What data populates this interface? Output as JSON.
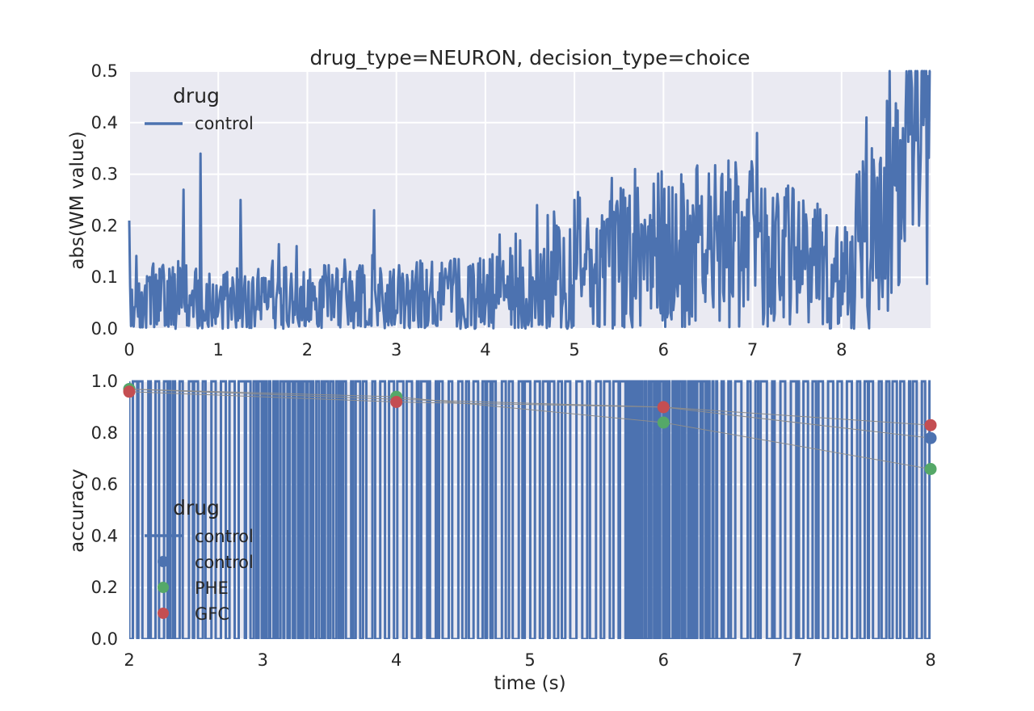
{
  "chart_data": [
    {
      "type": "line",
      "title": "drug_type=NEURON, decision_type=choice",
      "xlabel": "",
      "ylabel": "abs(WM value)",
      "xlim": [
        0,
        9
      ],
      "ylim": [
        0,
        0.5
      ],
      "xticks": [
        "0",
        "1",
        "2",
        "3",
        "4",
        "5",
        "6",
        "7",
        "8"
      ],
      "yticks": [
        "0.0",
        "0.1",
        "0.2",
        "0.3",
        "0.4",
        "0.5"
      ],
      "grid": true,
      "legend": {
        "title": "drug",
        "placement": "top-left",
        "entries": [
          "control"
        ]
      },
      "series": [
        {
          "name": "control",
          "color": "#4c72b0",
          "noise": "high-frequency, approx. 0.0–0.35",
          "trend": {
            "x": [
              0,
              1,
              2,
              3,
              4,
              4.5,
              5,
              6,
              7,
              7.5,
              8,
              8.2,
              8.5,
              8.8,
              9
            ],
            "y": [
              0.06,
              0.05,
              0.05,
              0.05,
              0.06,
              0.09,
              0.13,
              0.15,
              0.16,
              0.13,
              0.11,
              0.15,
              0.25,
              0.31,
              0.36
            ]
          },
          "peaks": [
            {
              "x": 0.0,
              "y": 0.21
            },
            {
              "x": 0.61,
              "y": 0.27
            },
            {
              "x": 0.8,
              "y": 0.34
            },
            {
              "x": 1.25,
              "y": 0.25
            },
            {
              "x": 2.75,
              "y": 0.23
            },
            {
              "x": 4.58,
              "y": 0.24
            },
            {
              "x": 5.0,
              "y": 0.25
            },
            {
              "x": 5.55,
              "y": 0.27
            },
            {
              "x": 5.68,
              "y": 0.31
            },
            {
              "x": 6.37,
              "y": 0.31
            },
            {
              "x": 6.75,
              "y": 0.29
            },
            {
              "x": 7.05,
              "y": 0.38
            },
            {
              "x": 8.28,
              "y": 0.41
            },
            {
              "x": 8.58,
              "y": 0.39
            },
            {
              "x": 8.72,
              "y": 0.42
            },
            {
              "x": 8.97,
              "y": 0.49
            }
          ]
        }
      ]
    },
    {
      "type": "line",
      "title": "",
      "xlabel": "time (s)",
      "ylabel": "accuracy",
      "xlim": [
        2,
        8
      ],
      "ylim": [
        0,
        1
      ],
      "xticks": [
        "2",
        "3",
        "4",
        "5",
        "6",
        "7",
        "8"
      ],
      "yticks": [
        "0.0",
        "0.2",
        "0.4",
        "0.6",
        "0.8",
        "1.0"
      ],
      "grid": true,
      "legend": {
        "title": "drug",
        "placement": "center-left",
        "entries": [
          "control",
          "control",
          "PHE",
          "GFC"
        ]
      },
      "series": [
        {
          "name": "control",
          "kind": "binary-trace",
          "values": "0 or 1",
          "color": "#4c72b0"
        },
        {
          "name": "control",
          "kind": "points",
          "color": "#4c72b0",
          "x": [
            2,
            4,
            6,
            8
          ],
          "y": [
            0.97,
            0.93,
            0.9,
            0.78
          ]
        },
        {
          "name": "PHE",
          "kind": "points",
          "color": "#55a868",
          "x": [
            2,
            4,
            6,
            8
          ],
          "y": [
            0.97,
            0.94,
            0.84,
            0.66
          ]
        },
        {
          "name": "GFC",
          "kind": "points",
          "color": "#c44e52",
          "x": [
            2,
            4,
            6,
            8
          ],
          "y": [
            0.96,
            0.92,
            0.9,
            0.83
          ]
        }
      ]
    }
  ]
}
